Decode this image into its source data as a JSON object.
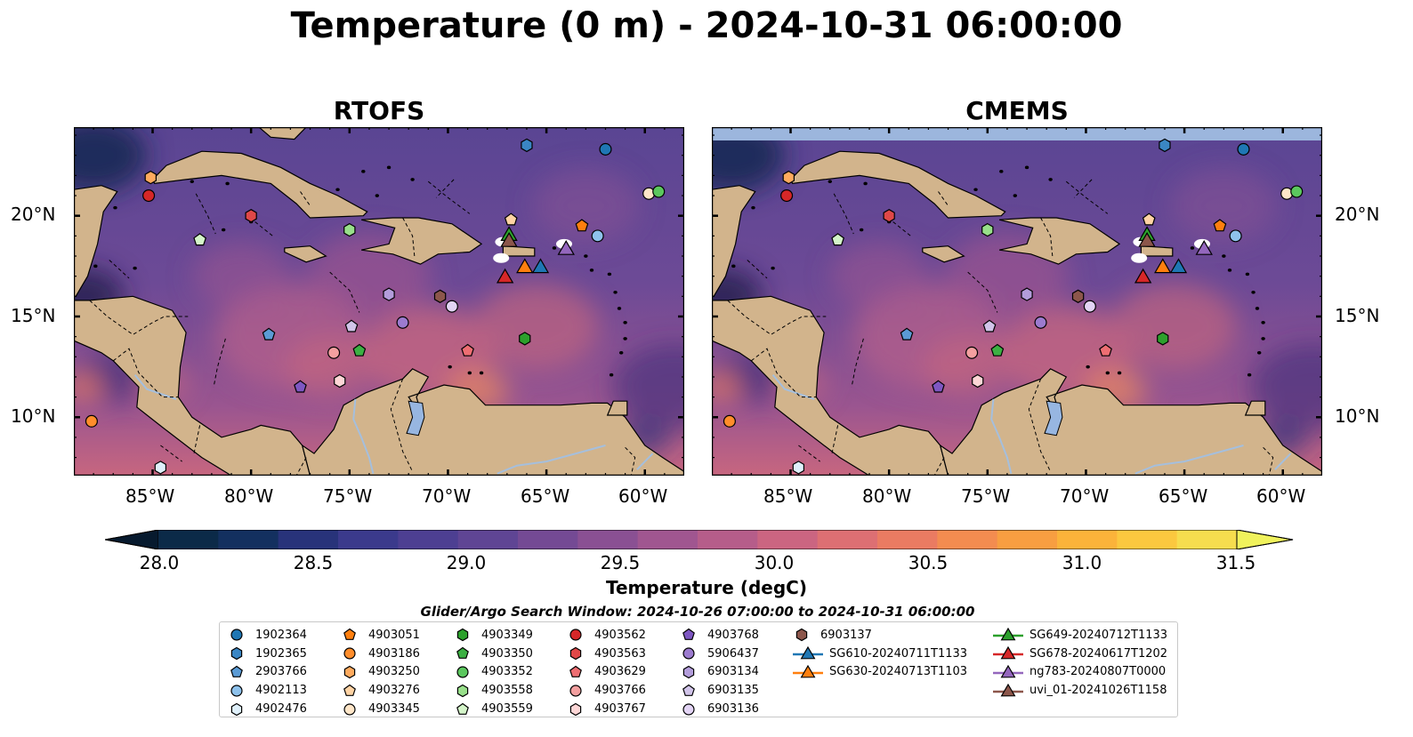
{
  "title": "Temperature (0 m) - 2024-10-31 06:00:00",
  "panels": [
    {
      "title": "RTOFS"
    },
    {
      "title": "CMEMS"
    }
  ],
  "lat_ticks": [
    "20°N",
    "15°N",
    "10°N"
  ],
  "lon_ticks": [
    "85°W",
    "80°W",
    "75°W",
    "70°W",
    "65°W",
    "60°W"
  ],
  "colorbar": {
    "label": "Temperature (degC)",
    "ticks": [
      "28.0",
      "28.5",
      "29.0",
      "29.5",
      "30.0",
      "30.5",
      "31.0",
      "31.5"
    ],
    "min": 28.0,
    "max": 31.5,
    "colors": [
      "#0b2a48",
      "#13305f",
      "#28337a",
      "#3b3a8c",
      "#4d3f92",
      "#5f4594",
      "#744a94",
      "#8a5093",
      "#a05690",
      "#b65d8a",
      "#cb6581",
      "#dd6f73",
      "#ea7b62",
      "#f38c50",
      "#f89e41",
      "#fbb33a",
      "#fbc83f",
      "#f6dd4e"
    ],
    "under_color": "#071a2e",
    "over_color": "#f0f25c"
  },
  "map_colors": {
    "land": "#d2b48c",
    "lake": "#97b6e1",
    "river": "#a5bfdd",
    "no_data": "#9cb6dd",
    "ocean_deep": "#1b2a55",
    "ocean_mid": "#5a4593",
    "ocean_warm": "#c7667f"
  },
  "legend": {
    "title": "Glider/Argo Search Window: 2024-10-26 07:00:00 to 2024-10-31 06:00:00",
    "argo": [
      {
        "id": "1902364",
        "marker": "circle",
        "color": "#1f77b4"
      },
      {
        "id": "1902365",
        "marker": "hexagon",
        "color": "#3a86c4"
      },
      {
        "id": "2903766",
        "marker": "pentagon",
        "color": "#5b9bd5"
      },
      {
        "id": "4902113",
        "marker": "circle",
        "color": "#8ec2ec"
      },
      {
        "id": "4902476",
        "marker": "hexagon",
        "color": "#dff0fb"
      },
      {
        "id": "4903051",
        "marker": "pentagon",
        "color": "#ff7f0e"
      },
      {
        "id": "4903186",
        "marker": "circle",
        "color": "#ff8d2b"
      },
      {
        "id": "4903250",
        "marker": "hexagon",
        "color": "#ffaa5e"
      },
      {
        "id": "4903276",
        "marker": "pentagon",
        "color": "#ffd3a4"
      },
      {
        "id": "4903345",
        "marker": "circle",
        "color": "#ffe6c8"
      },
      {
        "id": "4903349",
        "marker": "hexagon",
        "color": "#2ca02c"
      },
      {
        "id": "4903350",
        "marker": "pentagon",
        "color": "#3cb043"
      },
      {
        "id": "4903352",
        "marker": "circle",
        "color": "#5bc75e"
      },
      {
        "id": "4903558",
        "marker": "hexagon",
        "color": "#98df8a"
      },
      {
        "id": "4903559",
        "marker": "pentagon",
        "color": "#d4f5c9"
      },
      {
        "id": "4903562",
        "marker": "circle",
        "color": "#d62728"
      },
      {
        "id": "4903563",
        "marker": "hexagon",
        "color": "#e04848"
      },
      {
        "id": "4903629",
        "marker": "pentagon",
        "color": "#ee6e72"
      },
      {
        "id": "4903766",
        "marker": "circle",
        "color": "#f4a0a0"
      },
      {
        "id": "4903767",
        "marker": "hexagon",
        "color": "#fdd6d6"
      },
      {
        "id": "4903768",
        "marker": "pentagon",
        "color": "#7e57c2"
      },
      {
        "id": "5906437",
        "marker": "circle",
        "color": "#9c7bcf"
      },
      {
        "id": "6903134",
        "marker": "hexagon",
        "color": "#b39ddb"
      },
      {
        "id": "6903135",
        "marker": "pentagon",
        "color": "#d1c4e9"
      },
      {
        "id": "6903136",
        "marker": "circle",
        "color": "#e3d4f5"
      },
      {
        "id": "6903137",
        "marker": "hexagon",
        "color": "#8c564b"
      }
    ],
    "gliders": [
      {
        "id": "SG610-20240711T1133",
        "color": "#1f77b4"
      },
      {
        "id": "SG630-20240713T1103",
        "color": "#ff7f0e"
      },
      {
        "id": "SG649-20240712T1133",
        "color": "#2ca02c"
      },
      {
        "id": "SG678-20240617T1202",
        "color": "#d62728"
      },
      {
        "id": "ng783-20240807T0000",
        "color": "#9467bd"
      },
      {
        "id": "uvi_01-20241026T1158",
        "color": "#8c564b"
      }
    ]
  },
  "map_markers": [
    {
      "id": "1902364",
      "lon": -62.0,
      "lat": 23.3
    },
    {
      "id": "1902365",
      "lon": -66.0,
      "lat": 23.5
    },
    {
      "id": "2903766",
      "lon": -79.1,
      "lat": 14.1
    },
    {
      "id": "4902113",
      "lon": -62.4,
      "lat": 19.0
    },
    {
      "id": "4902476",
      "lon": -84.6,
      "lat": 7.5
    },
    {
      "id": "4903051",
      "lon": -63.2,
      "lat": 19.5
    },
    {
      "id": "4903186",
      "lon": -88.1,
      "lat": 9.8
    },
    {
      "id": "4903250",
      "lon": -85.1,
      "lat": 21.9
    },
    {
      "id": "4903276",
      "lon": -66.8,
      "lat": 19.8
    },
    {
      "id": "4903345",
      "lon": -59.8,
      "lat": 21.1
    },
    {
      "id": "4903349",
      "lon": -66.1,
      "lat": 13.9
    },
    {
      "id": "4903350",
      "lon": -74.5,
      "lat": 13.3
    },
    {
      "id": "4903352",
      "lon": -59.3,
      "lat": 21.2
    },
    {
      "id": "4903558",
      "lon": -75.0,
      "lat": 19.3
    },
    {
      "id": "4903559",
      "lon": -82.6,
      "lat": 18.8
    },
    {
      "id": "4903562",
      "lon": -85.2,
      "lat": 21.0
    },
    {
      "id": "4903563",
      "lon": -80.0,
      "lat": 20.0
    },
    {
      "id": "4903629",
      "lon": -69.0,
      "lat": 13.3
    },
    {
      "id": "4903766",
      "lon": -75.8,
      "lat": 13.2
    },
    {
      "id": "4903767",
      "lon": -75.5,
      "lat": 11.8
    },
    {
      "id": "4903768",
      "lon": -77.5,
      "lat": 11.5
    },
    {
      "id": "5906437",
      "lon": -72.3,
      "lat": 14.7
    },
    {
      "id": "6903134",
      "lon": -73.0,
      "lat": 16.1
    },
    {
      "id": "6903135",
      "lon": -74.9,
      "lat": 14.5
    },
    {
      "id": "6903136",
      "lon": -69.8,
      "lat": 15.5
    },
    {
      "id": "6903137",
      "lon": -70.4,
      "lat": 16.0
    }
  ],
  "glider_markers": [
    {
      "id": "SG610-20240711T1133",
      "lon": -65.3,
      "lat": 17.4
    },
    {
      "id": "SG630-20240713T1103",
      "lon": -66.1,
      "lat": 17.4
    },
    {
      "id": "SG649-20240712T1133",
      "lon": -66.9,
      "lat": 19.0
    },
    {
      "id": "SG678-20240617T1202",
      "lon": -67.1,
      "lat": 16.9
    },
    {
      "id": "ng783-20240807T0000",
      "lon": -64.0,
      "lat": 18.3
    },
    {
      "id": "uvi_01-20241026T1158",
      "lon": -66.9,
      "lat": 18.7
    }
  ]
}
